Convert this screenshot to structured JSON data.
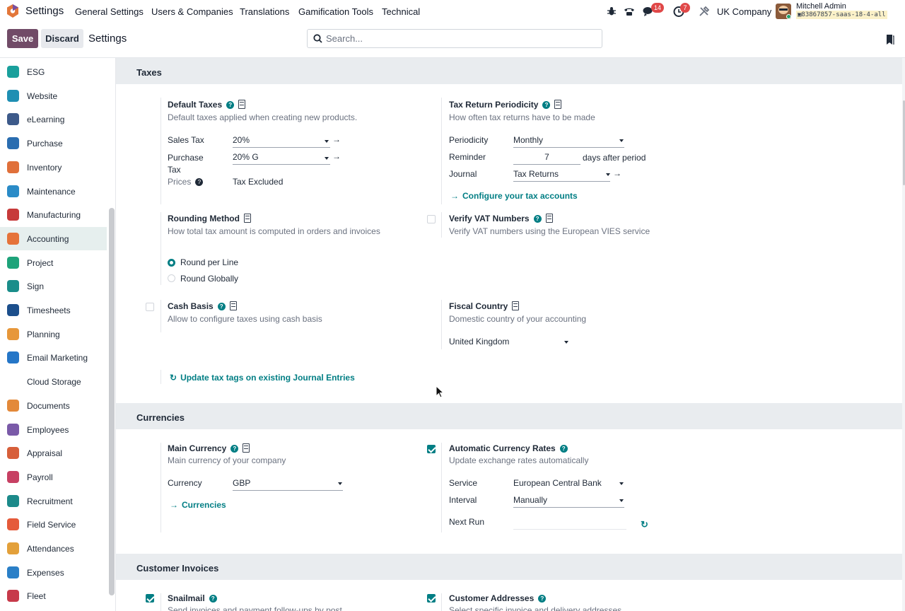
{
  "topnav": {
    "title": "Settings",
    "menus": [
      "General Settings",
      "Users & Companies",
      "Translations",
      "Gamification Tools",
      "Technical"
    ],
    "chat_badge": "14",
    "activity_badge": "7",
    "company": "UK Company",
    "user_name": "Mitchell Admin",
    "db_name": "83867857-saas-18-4-all"
  },
  "controlbar": {
    "save_label": "Save",
    "discard_label": "Discard",
    "breadcrumb": "Settings",
    "search_placeholder": "Search..."
  },
  "sidebar": {
    "items": [
      {
        "label": "ESG",
        "color": "#1aa09c"
      },
      {
        "label": "Website",
        "color": "#1f8fb3"
      },
      {
        "label": "eLearning",
        "color": "#3d5a8a"
      },
      {
        "label": "Purchase",
        "color": "#2a6db0"
      },
      {
        "label": "Inventory",
        "color": "#e0703a"
      },
      {
        "label": "Maintenance",
        "color": "#2a8bc7"
      },
      {
        "label": "Manufacturing",
        "color": "#c73a3a"
      },
      {
        "label": "Accounting",
        "color": "#e5733a"
      },
      {
        "label": "Project",
        "color": "#1ea37a"
      },
      {
        "label": "Sign",
        "color": "#1a8d8a"
      },
      {
        "label": "Timesheets",
        "color": "#1c4f8c"
      },
      {
        "label": "Planning",
        "color": "#e7973a"
      },
      {
        "label": "Email Marketing",
        "color": "#2576c7"
      },
      {
        "label": "Cloud Storage",
        "color": "#ffffff"
      },
      {
        "label": "Documents",
        "color": "#e3893a"
      },
      {
        "label": "Employees",
        "color": "#7a5aa8"
      },
      {
        "label": "Appraisal",
        "color": "#d75f3a"
      },
      {
        "label": "Payroll",
        "color": "#c74063"
      },
      {
        "label": "Recruitment",
        "color": "#1c8a8a"
      },
      {
        "label": "Field Service",
        "color": "#e55a3a"
      },
      {
        "label": "Attendances",
        "color": "#e3a03a"
      },
      {
        "label": "Expenses",
        "color": "#2a7fc7"
      },
      {
        "label": "Fleet",
        "color": "#c73a4a"
      }
    ],
    "active": "Accounting"
  },
  "taxes": {
    "title": "Taxes",
    "default_taxes": {
      "title": "Default Taxes",
      "desc": "Default taxes applied when creating new products.",
      "sales_label": "Sales Tax",
      "sales_value": "20%",
      "purchase_label": "Purchase Tax",
      "purchase_value": "20% G",
      "prices_label": "Prices",
      "prices_value": "Tax Excluded"
    },
    "periodicity": {
      "title": "Tax Return Periodicity",
      "desc": "How often tax returns have to be made",
      "periodicity_label": "Periodicity",
      "periodicity_value": "Monthly",
      "reminder_label": "Reminder",
      "reminder_value": "7",
      "reminder_suffix": "days after period",
      "journal_label": "Journal",
      "journal_value": "Tax Returns",
      "configure_link": "Configure your tax accounts"
    },
    "rounding": {
      "title": "Rounding Method",
      "desc": "How total tax amount is computed in orders and invoices",
      "opt1": "Round per Line",
      "opt2": "Round Globally",
      "selected": "Round per Line"
    },
    "vat": {
      "title": "Verify VAT Numbers",
      "desc": "Verify VAT numbers using the European VIES service",
      "checked": false
    },
    "cash_basis": {
      "title": "Cash Basis",
      "desc": "Allow to configure taxes using cash basis",
      "checked": false
    },
    "fiscal": {
      "title": "Fiscal Country",
      "desc": "Domestic country of your accounting",
      "value": "United Kingdom"
    },
    "update_link": "Update tax tags on existing Journal Entries"
  },
  "currencies": {
    "title": "Currencies",
    "main": {
      "title": "Main Currency",
      "desc": "Main currency of your company",
      "currency_label": "Currency",
      "currency_value": "GBP",
      "link": "Currencies"
    },
    "auto": {
      "title": "Automatic Currency Rates",
      "desc": "Update exchange rates automatically",
      "checked": true,
      "service_label": "Service",
      "service_value": "European Central Bank",
      "interval_label": "Interval",
      "interval_value": "Manually",
      "next_run_label": "Next Run",
      "next_run_value": ""
    }
  },
  "customer_invoices": {
    "title": "Customer Invoices",
    "snailmail": {
      "title": "Snailmail",
      "desc": "Send invoices and payment follow-ups by post",
      "checked": true
    },
    "addresses": {
      "title": "Customer Addresses",
      "desc": "Select specific invoice and delivery addresses",
      "checked": true
    }
  }
}
